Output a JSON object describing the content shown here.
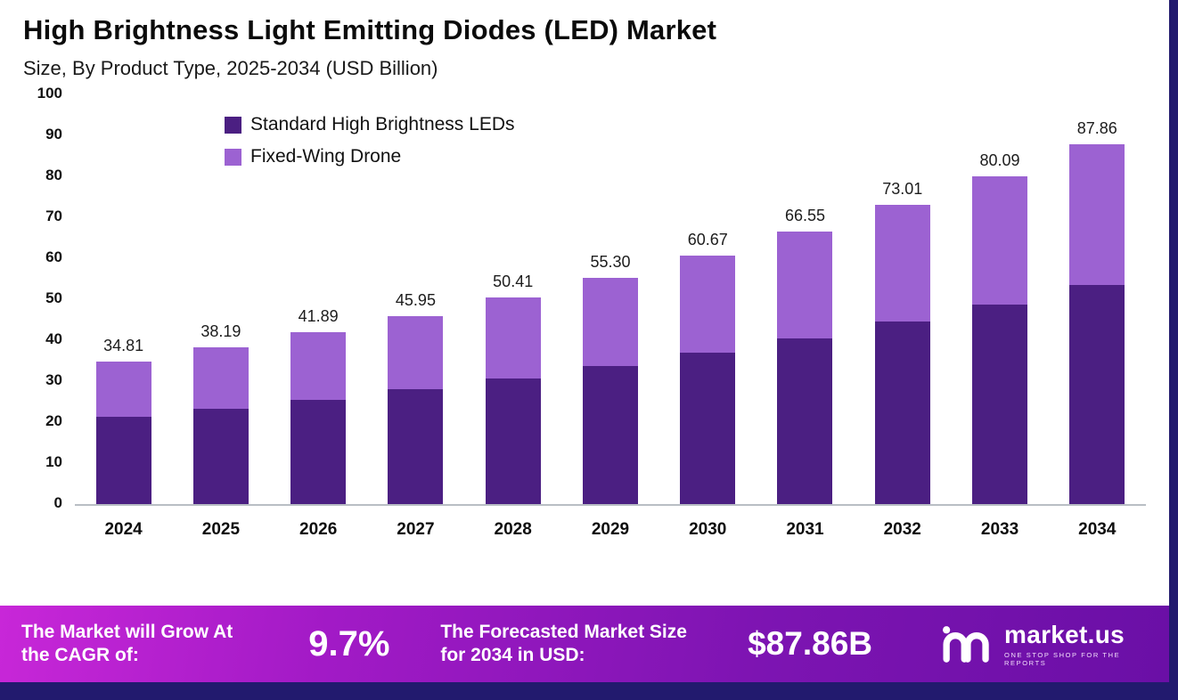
{
  "header": {
    "title": "High Brightness Light Emitting Diodes (LED) Market",
    "subtitle": "Size, By Product Type, 2025-2034 (USD Billion)"
  },
  "chart_data": {
    "type": "bar",
    "stacked": true,
    "title": "High Brightness Light Emitting Diodes (LED) Market Size, By Product Type, 2025-2034 (USD Billion)",
    "categories": [
      "2024",
      "2025",
      "2026",
      "2027",
      "2028",
      "2029",
      "2030",
      "2031",
      "2032",
      "2033",
      "2034"
    ],
    "series": [
      {
        "name": "Standard High Brightness LEDs",
        "color": "#4b1f82",
        "values": [
          21.2,
          23.3,
          25.5,
          28.0,
          30.7,
          33.7,
          37.0,
          40.5,
          44.5,
          48.8,
          53.5
        ]
      },
      {
        "name": "Fixed-Wing Drone",
        "color": "#9c62d2",
        "values": [
          13.61,
          14.89,
          16.39,
          17.95,
          19.71,
          21.6,
          23.67,
          26.05,
          28.51,
          31.29,
          34.36
        ]
      }
    ],
    "totals": [
      34.81,
      38.19,
      41.89,
      45.95,
      50.41,
      55.3,
      60.67,
      66.55,
      73.01,
      80.09,
      87.86
    ],
    "total_labels": [
      "34.81",
      "38.19",
      "41.89",
      "45.95",
      "50.41",
      "55.30",
      "60.67",
      "66.55",
      "73.01",
      "80.09",
      "87.86"
    ],
    "xlabel": "",
    "ylabel": "",
    "ylim": [
      0,
      100
    ],
    "ytick_step": 10,
    "grid": false,
    "legend_position": "top-left-inside"
  },
  "footer": {
    "cagr_label": "The Market will Grow At the CAGR of:",
    "cagr_value": "9.7%",
    "forecast_label": "The Forecasted Market Size for 2034 in USD:",
    "forecast_value": "$87.86B",
    "brand": {
      "name": "market.us",
      "tagline": "ONE STOP SHOP FOR THE REPORTS"
    }
  }
}
